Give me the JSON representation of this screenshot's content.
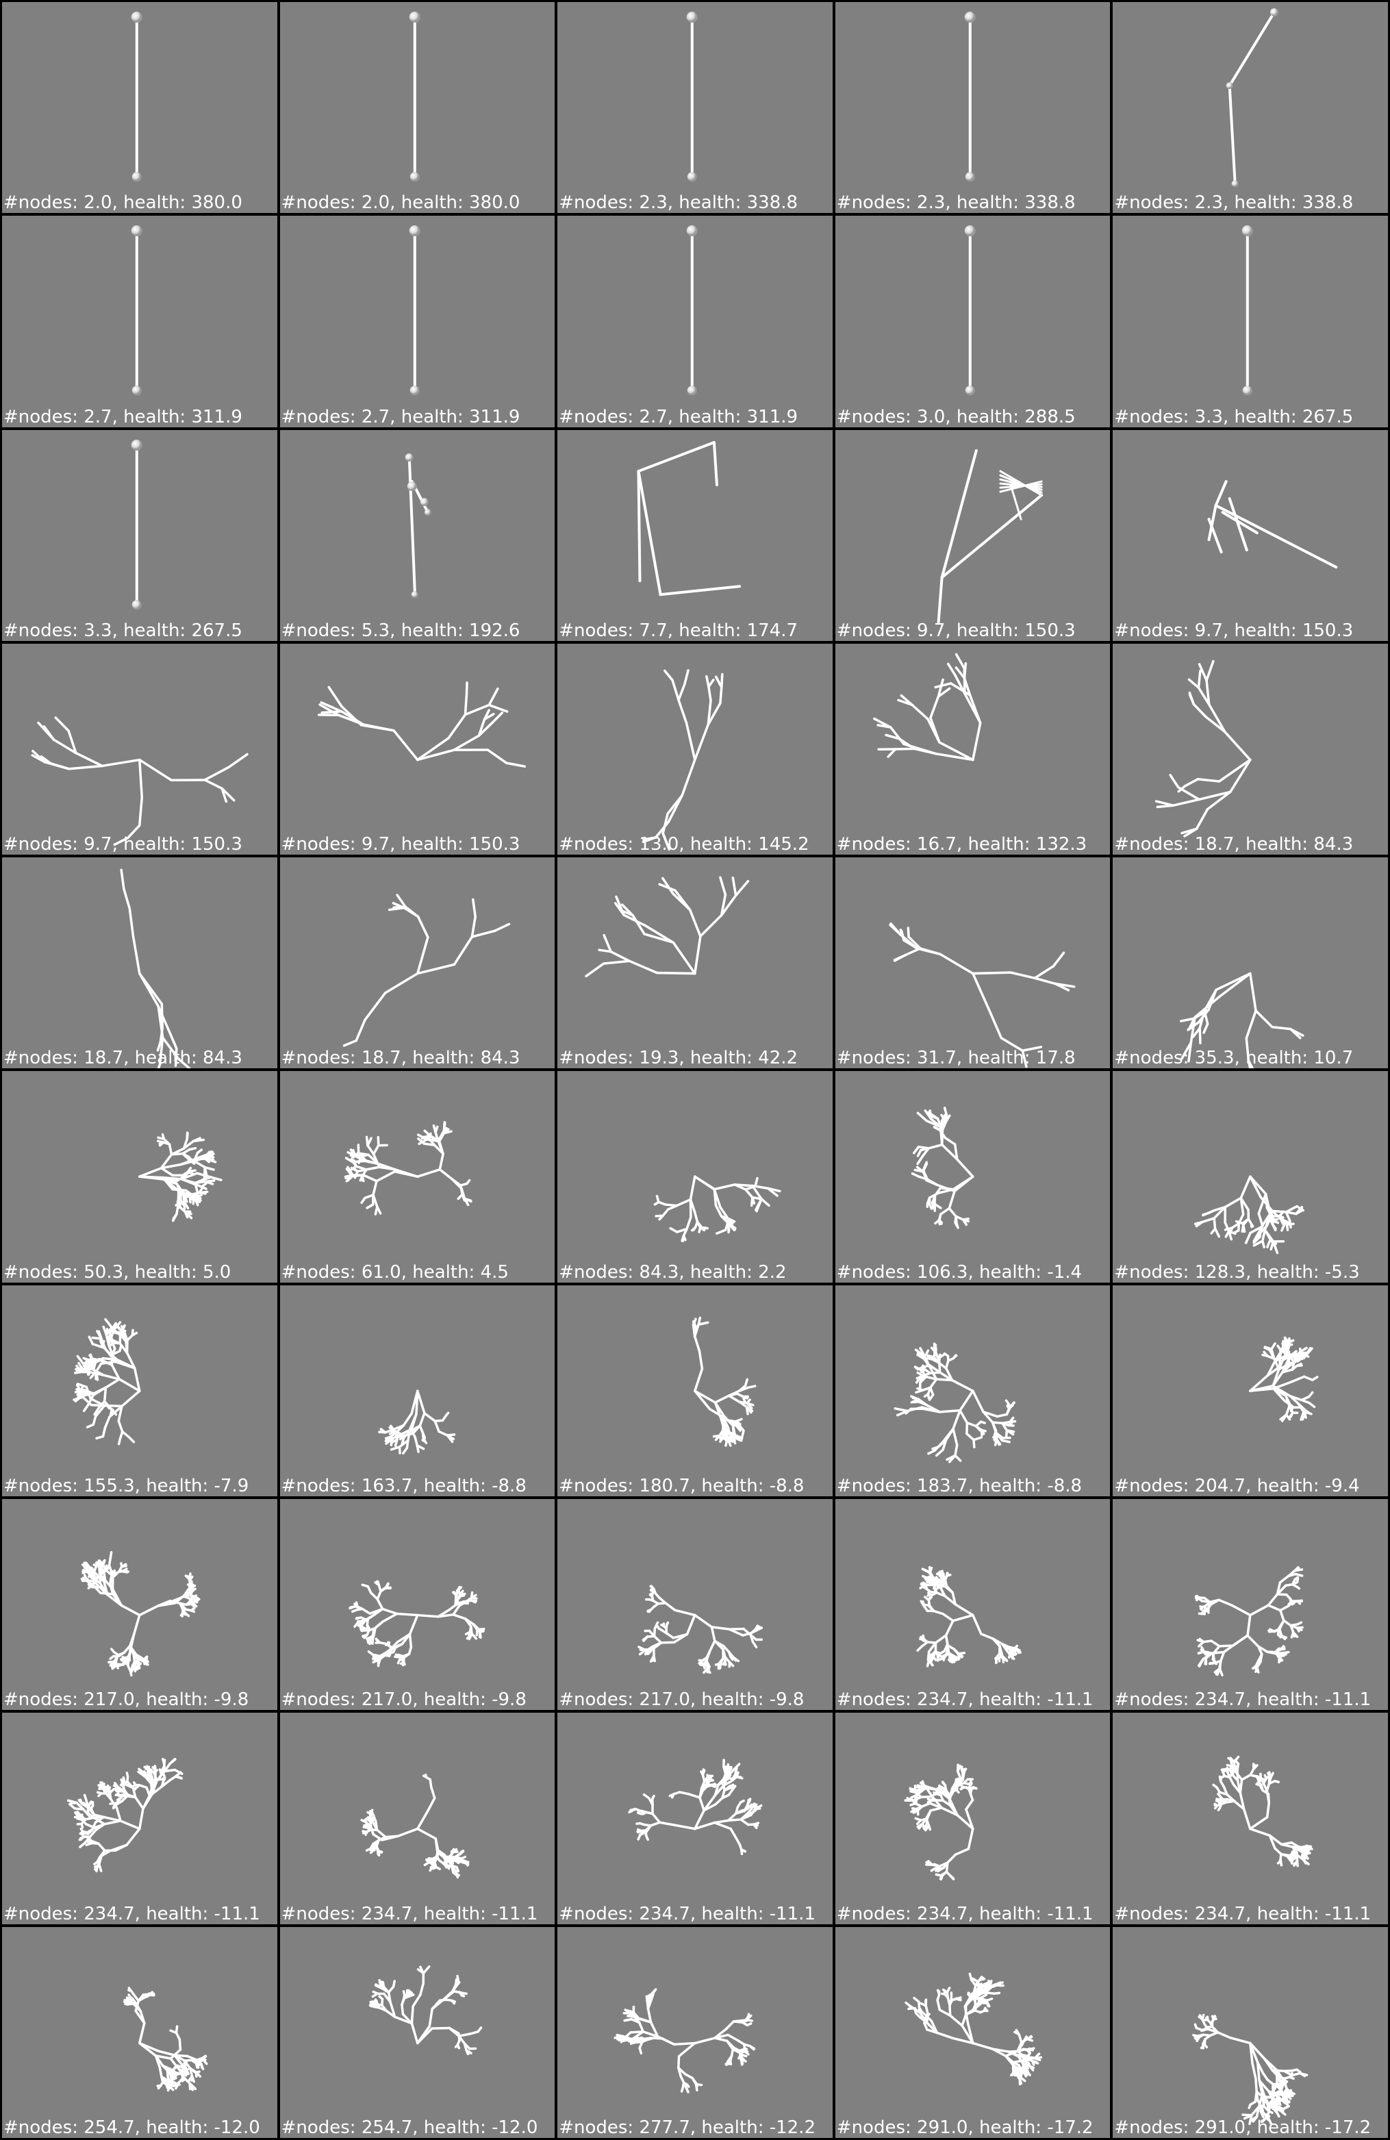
{
  "panels": [
    {
      "label": "#nodes: 2.0, health: 380.0",
      "nodes": 2.0,
      "health": 380.0,
      "shape": "vertical-pole"
    },
    {
      "label": "#nodes: 2.0, health: 380.0",
      "nodes": 2.0,
      "health": 380.0,
      "shape": "vertical-pole"
    },
    {
      "label": "#nodes: 2.3, health: 338.8",
      "nodes": 2.3,
      "health": 338.8,
      "shape": "vertical-pole"
    },
    {
      "label": "#nodes: 2.3, health: 338.8",
      "nodes": 2.3,
      "health": 338.8,
      "shape": "vertical-pole"
    },
    {
      "label": "#nodes: 2.3, health: 338.8",
      "nodes": 2.3,
      "health": 338.8,
      "shape": "bent-pole"
    },
    {
      "label": "#nodes: 2.7, health: 311.9",
      "nodes": 2.7,
      "health": 311.9,
      "shape": "vertical-pole"
    },
    {
      "label": "#nodes: 2.7, health: 311.9",
      "nodes": 2.7,
      "health": 311.9,
      "shape": "vertical-pole"
    },
    {
      "label": "#nodes: 2.7, health: 311.9",
      "nodes": 2.7,
      "health": 311.9,
      "shape": "vertical-pole"
    },
    {
      "label": "#nodes: 3.0, health: 288.5",
      "nodes": 3.0,
      "health": 288.5,
      "shape": "vertical-pole"
    },
    {
      "label": "#nodes: 3.3, health: 267.5",
      "nodes": 3.3,
      "health": 267.5,
      "shape": "vertical-pole"
    },
    {
      "label": "#nodes: 3.3, health: 267.5",
      "nodes": 3.3,
      "health": 267.5,
      "shape": "vertical-pole"
    },
    {
      "label": "#nodes: 5.3, health: 192.6",
      "nodes": 5.3,
      "health": 192.6,
      "shape": "pole-with-knots"
    },
    {
      "label": "#nodes: 7.7, health: 174.7",
      "nodes": 7.7,
      "health": 174.7,
      "shape": "zigzag"
    },
    {
      "label": "#nodes: 9.7, health: 150.3",
      "nodes": 9.7,
      "health": 150.3,
      "shape": "fan"
    },
    {
      "label": "#nodes: 9.7, health: 150.3",
      "nodes": 9.7,
      "health": 150.3,
      "shape": "splay"
    },
    {
      "label": "#nodes: 9.7, health: 150.3",
      "nodes": 9.7,
      "health": 150.3,
      "shape": "branch"
    },
    {
      "label": "#nodes: 9.7, health: 150.3",
      "nodes": 9.7,
      "health": 150.3,
      "shape": "branch"
    },
    {
      "label": "#nodes: 13.0, health: 145.2",
      "nodes": 13.0,
      "health": 145.2,
      "shape": "branch"
    },
    {
      "label": "#nodes: 16.7, health: 132.3",
      "nodes": 16.7,
      "health": 132.3,
      "shape": "branch"
    },
    {
      "label": "#nodes: 18.7, health: 84.3",
      "nodes": 18.7,
      "health": 84.3,
      "shape": "branch"
    },
    {
      "label": "#nodes: 18.7, health: 84.3",
      "nodes": 18.7,
      "health": 84.3,
      "shape": "branch"
    },
    {
      "label": "#nodes: 18.7, health: 84.3",
      "nodes": 18.7,
      "health": 84.3,
      "shape": "branch"
    },
    {
      "label": "#nodes: 19.3, health: 42.2",
      "nodes": 19.3,
      "health": 42.2,
      "shape": "branch"
    },
    {
      "label": "#nodes: 31.7, health: 17.8",
      "nodes": 31.7,
      "health": 17.8,
      "shape": "branch"
    },
    {
      "label": "#nodes: 35.3, health: 10.7",
      "nodes": 35.3,
      "health": 10.7,
      "shape": "branch"
    },
    {
      "label": "#nodes: 50.3, health: 5.0",
      "nodes": 50.3,
      "health": 5.0,
      "shape": "tangle"
    },
    {
      "label": "#nodes: 61.0, health: 4.5",
      "nodes": 61.0,
      "health": 4.5,
      "shape": "tangle"
    },
    {
      "label": "#nodes: 84.3, health: 2.2",
      "nodes": 84.3,
      "health": 2.2,
      "shape": "tangle"
    },
    {
      "label": "#nodes: 106.3, health: -1.4",
      "nodes": 106.3,
      "health": -1.4,
      "shape": "tangle"
    },
    {
      "label": "#nodes: 128.3, health: -5.3",
      "nodes": 128.3,
      "health": -5.3,
      "shape": "tangle"
    },
    {
      "label": "#nodes: 155.3, health: -7.9",
      "nodes": 155.3,
      "health": -7.9,
      "shape": "tangle"
    },
    {
      "label": "#nodes: 163.7, health: -8.8",
      "nodes": 163.7,
      "health": -8.8,
      "shape": "tangle"
    },
    {
      "label": "#nodes: 180.7, health: -8.8",
      "nodes": 180.7,
      "health": -8.8,
      "shape": "tangle"
    },
    {
      "label": "#nodes: 183.7, health: -8.8",
      "nodes": 183.7,
      "health": -8.8,
      "shape": "tangle"
    },
    {
      "label": "#nodes: 204.7, health: -9.4",
      "nodes": 204.7,
      "health": -9.4,
      "shape": "tangle"
    },
    {
      "label": "#nodes: 217.0, health: -9.8",
      "nodes": 217.0,
      "health": -9.8,
      "shape": "bush"
    },
    {
      "label": "#nodes: 217.0, health: -9.8",
      "nodes": 217.0,
      "health": -9.8,
      "shape": "bush"
    },
    {
      "label": "#nodes: 217.0, health: -9.8",
      "nodes": 217.0,
      "health": -9.8,
      "shape": "bush"
    },
    {
      "label": "#nodes: 234.7, health: -11.1",
      "nodes": 234.7,
      "health": -11.1,
      "shape": "bush"
    },
    {
      "label": "#nodes: 234.7, health: -11.1",
      "nodes": 234.7,
      "health": -11.1,
      "shape": "bush"
    },
    {
      "label": "#nodes: 234.7, health: -11.1",
      "nodes": 234.7,
      "health": -11.1,
      "shape": "bush"
    },
    {
      "label": "#nodes: 234.7, health: -11.1",
      "nodes": 234.7,
      "health": -11.1,
      "shape": "bush"
    },
    {
      "label": "#nodes: 234.7, health: -11.1",
      "nodes": 234.7,
      "health": -11.1,
      "shape": "bush"
    },
    {
      "label": "#nodes: 234.7, health: -11.1",
      "nodes": 234.7,
      "health": -11.1,
      "shape": "bush"
    },
    {
      "label": "#nodes: 234.7, health: -11.1",
      "nodes": 234.7,
      "health": -11.1,
      "shape": "bush"
    },
    {
      "label": "#nodes: 254.7, health: -12.0",
      "nodes": 254.7,
      "health": -12.0,
      "shape": "bush"
    },
    {
      "label": "#nodes: 254.7, health: -12.0",
      "nodes": 254.7,
      "health": -12.0,
      "shape": "bush"
    },
    {
      "label": "#nodes: 277.7, health: -12.2",
      "nodes": 277.7,
      "health": -12.2,
      "shape": "bush"
    },
    {
      "label": "#nodes: 291.0, health: -17.2",
      "nodes": 291.0,
      "health": -17.2,
      "shape": "bush"
    },
    {
      "label": "#nodes: 291.0, health: -17.2",
      "nodes": 291.0,
      "health": -17.2,
      "shape": "bush"
    }
  ],
  "colors": {
    "background": "#808080",
    "separator": "#000000",
    "structure": "#ffffff"
  }
}
